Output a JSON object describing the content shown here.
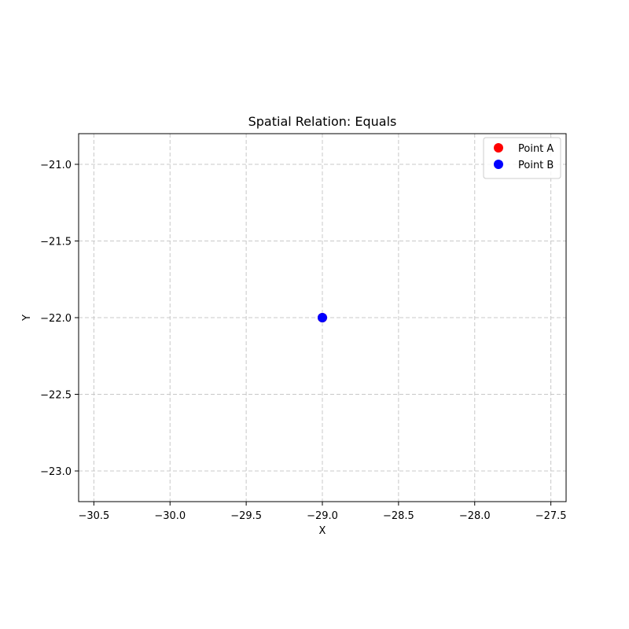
{
  "chart_data": {
    "type": "scatter",
    "title": "Spatial Relation: Equals",
    "xlabel": "X",
    "ylabel": "Y",
    "xlim": [
      -30.6,
      -27.4
    ],
    "ylim": [
      -23.2,
      -20.8
    ],
    "xticks": [
      -30.5,
      -30.0,
      -29.5,
      -29.0,
      -28.5,
      -28.0,
      -27.5
    ],
    "xtick_labels": [
      "−30.5",
      "−30.0",
      "−29.5",
      "−29.0",
      "−28.5",
      "−28.0",
      "−27.5"
    ],
    "yticks": [
      -21.0,
      -21.5,
      -22.0,
      -22.5,
      -23.0
    ],
    "ytick_labels": [
      "−21.0",
      "−21.5",
      "−22.0",
      "−22.5",
      "−23.0"
    ],
    "grid": true,
    "legend_position": "top-right",
    "series": [
      {
        "name": "Point A",
        "color": "#ff0000",
        "points": [
          {
            "x": -29.0,
            "y": -22.0
          }
        ]
      },
      {
        "name": "Point B",
        "color": "#0000ff",
        "points": [
          {
            "x": -29.0,
            "y": -22.0
          }
        ]
      }
    ]
  }
}
